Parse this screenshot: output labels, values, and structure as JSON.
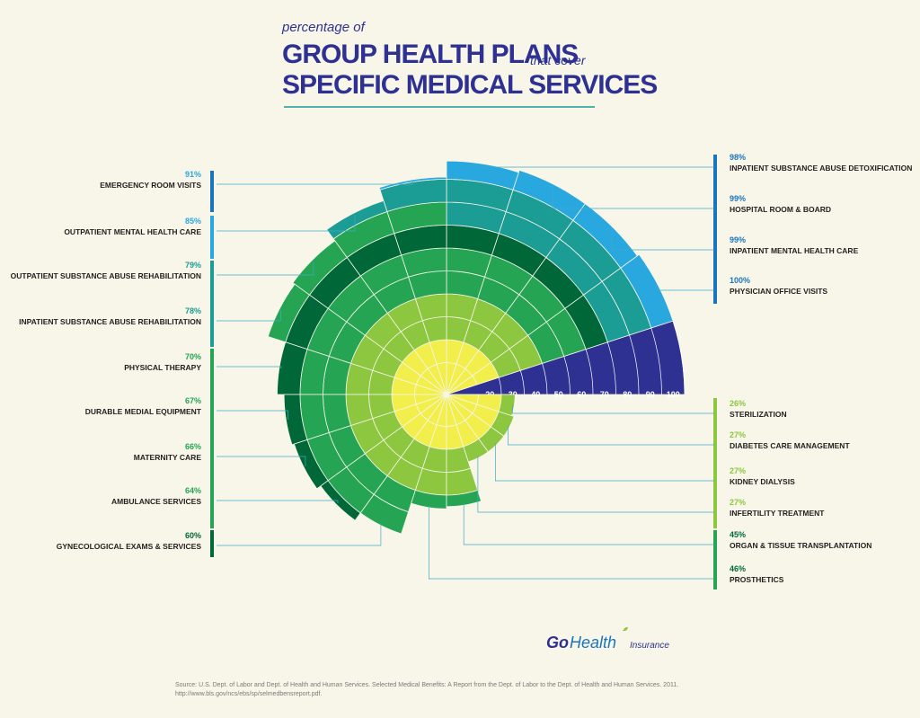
{
  "header": {
    "pre": "percentage of",
    "line1": "GROUP HEALTH PLANS",
    "mid": "that cover",
    "line2": "SPECIFIC MEDICAL SERVICES"
  },
  "chart_data": {
    "type": "radial-bar",
    "title": "percentage of GROUP HEALTH PLANS that cover SPECIFIC MEDICAL SERVICES",
    "scale_ticks": [
      "20",
      "30",
      "40",
      "50",
      "60",
      "70",
      "80",
      "90",
      "100"
    ],
    "categories": [
      "PHYSICIAN OFFICE VISITS",
      "INPATIENT MENTAL HEALTH CARE",
      "HOSPITAL ROOM & BOARD",
      "INPATIENT SUBSTANCE ABUSE DETOXIFICATION",
      "EMERGENCY ROOM VISITS",
      "OUTPATIENT MENTAL HEALTH CARE",
      "OUTPATIENT SUBSTANCE ABUSE REHABILITATION",
      "INPATIENT SUBSTANCE ABUSE REHABILITATION",
      "PHYSICAL THERAPY",
      "DURABLE MEDIAL EQUIPMENT",
      "MATERNITY CARE",
      "AMBULANCE SERVICES",
      "GYNECOLOGICAL EXAMS & SERVICES",
      "PROSTHETICS",
      "ORGAN & TISSUE TRANSPLANTATION",
      "INFERTILITY TREATMENT",
      "KIDNEY DIALYSIS",
      "DIABETES CARE MANAGEMENT",
      "STERILIZATION"
    ],
    "values": [
      100,
      99,
      99,
      98,
      91,
      85,
      79,
      78,
      70,
      67,
      66,
      64,
      60,
      46,
      45,
      27,
      27,
      27,
      26
    ],
    "value_labels": [
      "100%",
      "99%",
      "99%",
      "98%",
      "91%",
      "85%",
      "79%",
      "78%",
      "70%",
      "67%",
      "66%",
      "64%",
      "60%",
      "46%",
      "45%",
      "27%",
      "27%",
      "27%",
      "26%"
    ],
    "colors": {
      "axis": "#2e3192",
      "high": "#1c75bc",
      "light_blue": "#29a8e0",
      "teal": "#1b9c94",
      "dark_green": "#006838",
      "green": "#25a454",
      "lime": "#8dc63f",
      "yellow": "#f2ee4b"
    }
  },
  "footer": {
    "logo_go": "Go",
    "logo_health": "Health",
    "logo_insurance": "Insurance",
    "source_line1": "Source: U.S. Dept. of Labor and Dept. of Health and Human Services. Selected Medical Benefits: A Report from the Dept. of Labor to the Dept. of Health and Human Services. 2011.",
    "source_line2": "http://www.bls.gov/ncs/ebs/sp/selmedbensreport.pdf."
  }
}
